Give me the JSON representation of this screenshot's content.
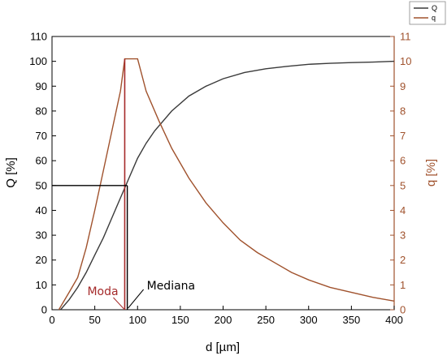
{
  "colors": {
    "Q": "#3a3a3a",
    "q": "#a0522d",
    "axis_left": "#000000",
    "axis_right": "#a0522d",
    "annotation_moda": "#a52a2a"
  },
  "chart_data": {
    "type": "line",
    "xlabel": "d [µm]",
    "ylabel_left": "Q [%]",
    "ylabel_right": "q [%]",
    "xlim": [
      0,
      400
    ],
    "ylim_left": [
      0,
      110
    ],
    "ylim_right": [
      0,
      11
    ],
    "xticks": [
      0,
      50,
      100,
      150,
      200,
      250,
      300,
      350,
      400
    ],
    "yticks_left": [
      0,
      10,
      20,
      30,
      40,
      50,
      60,
      70,
      80,
      90,
      100,
      110
    ],
    "yticks_right": [
      0,
      1,
      2,
      3,
      4,
      5,
      6,
      7,
      8,
      9,
      10,
      11
    ],
    "grid": false,
    "legend_position": "top-right",
    "series": [
      {
        "name": "Q",
        "axis": "left",
        "x": [
          10,
          20,
          30,
          40,
          50,
          60,
          70,
          80,
          90,
          100,
          110,
          120,
          140,
          160,
          180,
          200,
          225,
          250,
          275,
          300,
          325,
          350,
          375,
          400
        ],
        "y": [
          0,
          4,
          9,
          15,
          22,
          29,
          37,
          45,
          53,
          61,
          67,
          72,
          80,
          86,
          90,
          93,
          95.5,
          97,
          98,
          98.8,
          99.2,
          99.5,
          99.7,
          100
        ]
      },
      {
        "name": "q",
        "axis": "right",
        "x": [
          8,
          20,
          30,
          40,
          50,
          60,
          70,
          80,
          85,
          100,
          110,
          125,
          140,
          160,
          180,
          200,
          220,
          240,
          260,
          280,
          300,
          325,
          350,
          375,
          400
        ],
        "y": [
          0,
          0.7,
          1.3,
          2.5,
          4.0,
          5.6,
          7.2,
          8.8,
          10.1,
          10.1,
          8.8,
          7.6,
          6.5,
          5.3,
          4.3,
          3.5,
          2.8,
          2.3,
          1.9,
          1.5,
          1.2,
          0.9,
          0.7,
          0.5,
          0.35
        ]
      }
    ],
    "annotations": [
      {
        "label": "Moda",
        "x": 85
      },
      {
        "label": "Mediana",
        "x": 88,
        "q_level": 50
      }
    ]
  }
}
